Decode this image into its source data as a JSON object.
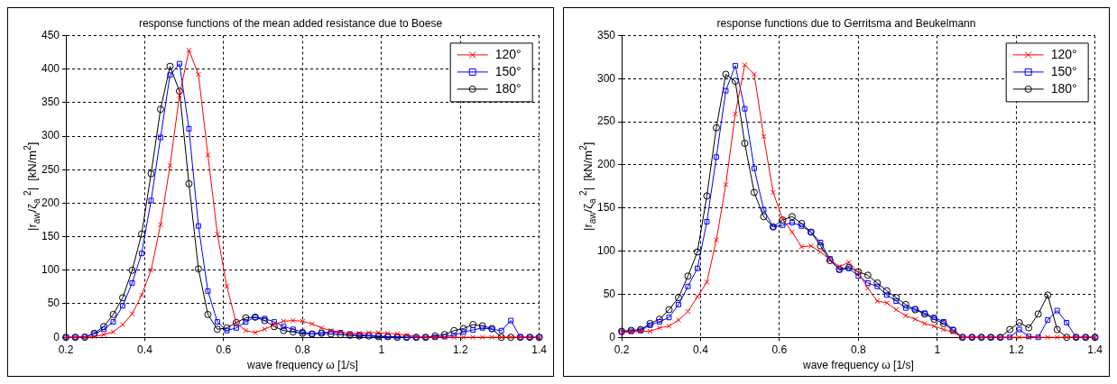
{
  "chart_data": [
    {
      "type": "line",
      "title": "response functions of the mean added resistance due to Boese",
      "xlabel": "wave frequency ω [1/s]",
      "ylabel": "|r$_{aw}$/ζ$_{a}$ $^{2}$|  [kN/m$^{2}$]",
      "x": [
        0.2,
        0.224,
        0.248,
        0.272,
        0.296,
        0.32,
        0.344,
        0.368,
        0.392,
        0.416,
        0.44,
        0.464,
        0.488,
        0.512,
        0.536,
        0.56,
        0.584,
        0.608,
        0.632,
        0.656,
        0.68,
        0.704,
        0.728,
        0.752,
        0.776,
        0.8,
        0.824,
        0.848,
        0.872,
        0.896,
        0.92,
        0.944,
        0.968,
        0.992,
        1.016,
        1.04,
        1.064,
        1.088,
        1.112,
        1.136,
        1.16,
        1.184,
        1.208,
        1.232,
        1.256,
        1.28,
        1.304,
        1.328,
        1.352,
        1.376,
        1.4
      ],
      "series": [
        {
          "name": "120°",
          "color": "#ff0000",
          "marker": "cross",
          "values": [
            0,
            0,
            0,
            1,
            4,
            8,
            19,
            35,
            63,
            100,
            168,
            256,
            361,
            428,
            392,
            272,
            154,
            76,
            21,
            10,
            7,
            12,
            19,
            24,
            25,
            24,
            20,
            14,
            10,
            8,
            5,
            6,
            7,
            7,
            6,
            5,
            3,
            1,
            0,
            0,
            0,
            0,
            0,
            0,
            0,
            0,
            0,
            0,
            0,
            0,
            0
          ]
        },
        {
          "name": "150°",
          "color": "#0000ff",
          "marker": "square",
          "values": [
            0,
            0,
            1,
            5,
            12,
            23,
            47,
            81,
            125,
            204,
            298,
            391,
            408,
            311,
            166,
            69,
            23,
            10,
            14,
            23,
            30,
            28,
            23,
            16,
            12,
            8,
            5,
            7,
            8,
            7,
            5,
            4,
            3,
            2,
            1,
            1,
            0,
            0,
            0,
            0,
            1,
            3,
            8,
            11,
            14,
            12,
            10,
            25,
            0,
            0,
            0
          ]
        },
        {
          "name": "180°",
          "color": "#000000",
          "marker": "circle",
          "values": [
            0,
            0,
            0,
            6,
            16,
            34,
            59,
            100,
            154,
            244,
            340,
            404,
            367,
            229,
            102,
            34,
            12,
            14,
            22,
            29,
            30,
            25,
            16,
            10,
            8,
            6,
            5,
            6,
            5,
            4,
            3,
            2,
            2,
            1,
            1,
            0,
            0,
            0,
            0,
            2,
            4,
            10,
            13,
            19,
            17,
            13,
            0,
            0,
            0,
            0,
            0
          ]
        }
      ],
      "xlim": [
        0.2,
        1.4
      ],
      "xticks": [
        0.2,
        0.4,
        0.6,
        0.8,
        1,
        1.2,
        1.4
      ],
      "ylim": [
        0,
        450
      ],
      "yticks": [
        0,
        50,
        100,
        150,
        200,
        250,
        300,
        350,
        400,
        450
      ],
      "grid": true,
      "legend": "top right"
    },
    {
      "type": "line",
      "title": "response functions due to Gerritsma and Beukelmann",
      "xlabel": "wave frequency ω [1/s]",
      "ylabel": "|r$_{aw}$/ζ$_{a}$ $^{2}$|  [kN/m$^{2}$]",
      "x": [
        0.2,
        0.224,
        0.248,
        0.272,
        0.296,
        0.32,
        0.344,
        0.368,
        0.392,
        0.416,
        0.44,
        0.464,
        0.488,
        0.512,
        0.536,
        0.56,
        0.584,
        0.608,
        0.632,
        0.656,
        0.68,
        0.704,
        0.728,
        0.752,
        0.776,
        0.8,
        0.824,
        0.848,
        0.872,
        0.896,
        0.92,
        0.944,
        0.968,
        0.992,
        1.016,
        1.04,
        1.064,
        1.088,
        1.112,
        1.136,
        1.16,
        1.184,
        1.208,
        1.232,
        1.256,
        1.28,
        1.304,
        1.328,
        1.352,
        1.376,
        1.4
      ],
      "series": [
        {
          "name": "120°",
          "color": "#ff0000",
          "marker": "cross",
          "values": [
            6,
            6,
            7,
            7,
            11,
            13,
            20,
            30,
            47,
            64,
            113,
            177,
            259,
            316,
            305,
            233,
            168,
            137,
            122,
            105,
            106,
            99,
            90,
            82,
            87,
            75,
            57,
            42,
            40,
            32,
            25,
            21,
            16,
            13,
            9,
            6,
            0,
            0,
            0,
            0,
            0,
            0,
            0,
            0,
            0,
            0,
            0,
            0,
            0,
            0,
            0
          ]
        },
        {
          "name": "150°",
          "color": "#0000ff",
          "marker": "square",
          "values": [
            6,
            7,
            8,
            14,
            18,
            23,
            38,
            59,
            80,
            134,
            209,
            286,
            315,
            265,
            196,
            148,
            128,
            130,
            133,
            129,
            122,
            110,
            91,
            78,
            80,
            71,
            63,
            59,
            49,
            42,
            34,
            33,
            28,
            23,
            18,
            9,
            0,
            0,
            0,
            0,
            0,
            0,
            9,
            1,
            0,
            20,
            31,
            17,
            0,
            0,
            0
          ]
        },
        {
          "name": "180°",
          "color": "#000000",
          "marker": "circle",
          "values": [
            7,
            8,
            9,
            16,
            21,
            32,
            46,
            71,
            99,
            164,
            243,
            305,
            297,
            225,
            168,
            140,
            128,
            136,
            140,
            132,
            122,
            106,
            89,
            79,
            81,
            76,
            72,
            63,
            54,
            46,
            38,
            32,
            27,
            21,
            16,
            8,
            0,
            0,
            0,
            0,
            0,
            9,
            17,
            11,
            27,
            49,
            9,
            0,
            0,
            0,
            0
          ]
        }
      ],
      "xlim": [
        0.2,
        1.4
      ],
      "xticks": [
        0.2,
        0.4,
        0.6,
        0.8,
        1,
        1.2,
        1.4
      ],
      "ylim": [
        0,
        350
      ],
      "yticks": [
        0,
        50,
        100,
        150,
        200,
        250,
        300,
        350
      ],
      "grid": true,
      "legend": "top right"
    }
  ]
}
